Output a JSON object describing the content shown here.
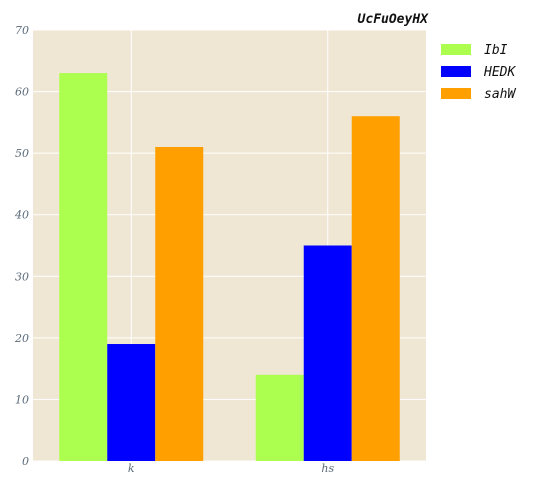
{
  "chart_data": {
    "type": "bar",
    "title": "UcFuOeyHX",
    "xlabel": "",
    "ylabel": "",
    "categories": [
      "k",
      "hs"
    ],
    "series": [
      {
        "name": "IbI",
        "values": [
          63,
          14
        ],
        "color": "#adff4f"
      },
      {
        "name": "HEDK",
        "values": [
          19,
          35
        ],
        "color": "#0000ff"
      },
      {
        "name": "sahW",
        "values": [
          51,
          56
        ],
        "color": "#ff9f00"
      }
    ],
    "ylim": [
      0,
      70
    ],
    "yticks": [
      0,
      10,
      20,
      30,
      40,
      50,
      60,
      70
    ],
    "grid": true,
    "legend_position": "right-top",
    "plot_background": "#efe6d3"
  }
}
